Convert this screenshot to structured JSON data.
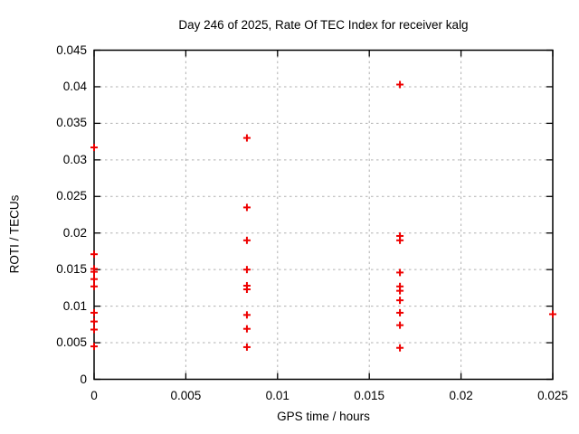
{
  "chart_data": {
    "type": "scatter",
    "title": "Day 246 of 2025, Rate Of TEC Index for receiver kalg",
    "xlabel": "GPS time / hours",
    "ylabel": "ROTI / TECUs",
    "xlim": [
      0,
      0.025
    ],
    "ylim": [
      0,
      0.045
    ],
    "grid": true,
    "legend": "none",
    "marker": "plus",
    "marker_color": "#ee0000",
    "grid_color": "#b0b0b0",
    "axis_color": "#000000",
    "xticks": [
      {
        "v": 0,
        "label": "0"
      },
      {
        "v": 0.005,
        "label": "0.005"
      },
      {
        "v": 0.01,
        "label": "0.01"
      },
      {
        "v": 0.015,
        "label": "0.015"
      },
      {
        "v": 0.02,
        "label": "0.02"
      },
      {
        "v": 0.025,
        "label": "0.025"
      }
    ],
    "yticks": [
      {
        "v": 0,
        "label": "0"
      },
      {
        "v": 0.005,
        "label": "0.005"
      },
      {
        "v": 0.01,
        "label": "0.01"
      },
      {
        "v": 0.015,
        "label": "0.015"
      },
      {
        "v": 0.02,
        "label": "0.02"
      },
      {
        "v": 0.025,
        "label": "0.025"
      },
      {
        "v": 0.03,
        "label": "0.03"
      },
      {
        "v": 0.035,
        "label": "0.035"
      },
      {
        "v": 0.04,
        "label": "0.04"
      },
      {
        "v": 0.045,
        "label": "0.045"
      }
    ],
    "series": [
      {
        "name": "roti",
        "points": [
          [
            0,
            0.0317
          ],
          [
            0,
            0.0171
          ],
          [
            0,
            0.0151
          ],
          [
            0,
            0.0147
          ],
          [
            0,
            0.0137
          ],
          [
            0,
            0.0127
          ],
          [
            0,
            0.0091
          ],
          [
            0,
            0.0079
          ],
          [
            0,
            0.0068
          ],
          [
            0,
            0.0045
          ],
          [
            0.00833,
            0.033
          ],
          [
            0.00833,
            0.0235
          ],
          [
            0.00833,
            0.019
          ],
          [
            0.00833,
            0.015
          ],
          [
            0.00833,
            0.0128
          ],
          [
            0.00833,
            0.0123
          ],
          [
            0.00833,
            0.0088
          ],
          [
            0.00833,
            0.0069
          ],
          [
            0.00833,
            0.0044
          ],
          [
            0.01667,
            0.0403
          ],
          [
            0.01667,
            0.0196
          ],
          [
            0.01667,
            0.019
          ],
          [
            0.01667,
            0.0146
          ],
          [
            0.01667,
            0.0127
          ],
          [
            0.01667,
            0.0121
          ],
          [
            0.01667,
            0.0108
          ],
          [
            0.01667,
            0.0091
          ],
          [
            0.01667,
            0.0074
          ],
          [
            0.01667,
            0.0043
          ],
          [
            0.025,
            0.0089
          ]
        ]
      }
    ]
  }
}
